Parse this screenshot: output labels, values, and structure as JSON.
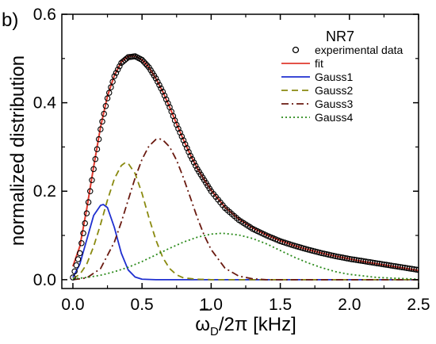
{
  "chart_data": {
    "type": "line",
    "panel_label": "b)",
    "legend_title": "NR7",
    "xlabel": "ω̄D/2π [kHz]",
    "xlabel_parts": {
      "symbol": "ω",
      "subscript": "D",
      "rest": "/2π [kHz]"
    },
    "ylabel": "normalized distribution",
    "xlim": [
      -0.08,
      2.5
    ],
    "ylim": [
      -0.02,
      0.6
    ],
    "xticks": [
      "0.0",
      "0.5",
      "1.0",
      "1.5",
      "2.0",
      "2.5"
    ],
    "yticks": [
      "0.0",
      "0.2",
      "0.4",
      "0.6"
    ],
    "legend_position": "top-right",
    "series": [
      {
        "name": "experimental data",
        "style": "open-circles",
        "color": "#000000",
        "x": [
          0.0,
          0.05,
          0.1,
          0.15,
          0.2,
          0.25,
          0.3,
          0.35,
          0.4,
          0.45,
          0.5,
          0.55,
          0.6,
          0.65,
          0.7,
          0.75,
          0.8,
          0.85,
          0.9,
          0.95,
          1.0,
          1.1,
          1.2,
          1.3,
          1.4,
          1.5,
          1.6,
          1.7,
          1.8,
          1.9,
          2.0,
          2.1,
          2.2,
          2.3,
          2.4,
          2.5
        ],
        "y": [
          0.005,
          0.06,
          0.15,
          0.25,
          0.34,
          0.41,
          0.46,
          0.49,
          0.503,
          0.505,
          0.497,
          0.48,
          0.455,
          0.425,
          0.39,
          0.35,
          0.315,
          0.28,
          0.25,
          0.225,
          0.2,
          0.162,
          0.135,
          0.115,
          0.1,
          0.087,
          0.077,
          0.068,
          0.06,
          0.053,
          0.047,
          0.042,
          0.037,
          0.032,
          0.027,
          0.022
        ]
      },
      {
        "name": "fit",
        "style": "solid",
        "color": "#e03a2e",
        "x": [
          0.0,
          0.05,
          0.1,
          0.15,
          0.2,
          0.25,
          0.3,
          0.35,
          0.4,
          0.45,
          0.5,
          0.55,
          0.6,
          0.65,
          0.7,
          0.75,
          0.8,
          0.85,
          0.9,
          0.95,
          1.0,
          1.1,
          1.2,
          1.3,
          1.4,
          1.5,
          1.6,
          1.7,
          1.8,
          1.9,
          2.0,
          2.1,
          2.2,
          2.3,
          2.4,
          2.5
        ],
        "y": [
          0.03,
          0.075,
          0.16,
          0.255,
          0.345,
          0.415,
          0.462,
          0.492,
          0.505,
          0.506,
          0.497,
          0.48,
          0.455,
          0.425,
          0.39,
          0.352,
          0.316,
          0.282,
          0.252,
          0.226,
          0.202,
          0.164,
          0.137,
          0.117,
          0.101,
          0.088,
          0.077,
          0.068,
          0.06,
          0.053,
          0.047,
          0.041,
          0.036,
          0.031,
          0.026,
          0.021
        ]
      },
      {
        "name": "Gauss1",
        "style": "solid",
        "color": "#1f2fd0",
        "x": [
          0.0,
          0.05,
          0.1,
          0.15,
          0.2,
          0.22,
          0.25,
          0.3,
          0.35,
          0.4,
          0.45,
          0.5,
          0.6,
          1.0,
          2.5
        ],
        "y": [
          0.005,
          0.035,
          0.09,
          0.145,
          0.168,
          0.17,
          0.163,
          0.118,
          0.06,
          0.022,
          0.006,
          0.001,
          0.0,
          0.0,
          0.0
        ]
      },
      {
        "name": "Gauss2",
        "style": "dashed",
        "color": "#8a8a10",
        "x": [
          0.0,
          0.05,
          0.1,
          0.15,
          0.2,
          0.25,
          0.3,
          0.35,
          0.38,
          0.4,
          0.45,
          0.5,
          0.55,
          0.6,
          0.65,
          0.7,
          0.75,
          0.8,
          0.9,
          1.0,
          2.5
        ],
        "y": [
          0.002,
          0.012,
          0.035,
          0.075,
          0.125,
          0.18,
          0.228,
          0.258,
          0.265,
          0.263,
          0.24,
          0.195,
          0.14,
          0.09,
          0.05,
          0.025,
          0.011,
          0.004,
          0.001,
          0.0,
          0.0
        ]
      },
      {
        "name": "Gauss3",
        "style": "dash-dot",
        "color": "#6a1a10",
        "x": [
          0.0,
          0.1,
          0.2,
          0.3,
          0.35,
          0.4,
          0.45,
          0.5,
          0.55,
          0.6,
          0.63,
          0.65,
          0.7,
          0.75,
          0.8,
          0.85,
          0.9,
          0.95,
          1.0,
          1.1,
          1.2,
          1.3,
          1.4,
          2.5
        ],
        "y": [
          0.0,
          0.004,
          0.025,
          0.085,
          0.13,
          0.18,
          0.23,
          0.272,
          0.302,
          0.317,
          0.318,
          0.316,
          0.3,
          0.27,
          0.23,
          0.185,
          0.14,
          0.1,
          0.068,
          0.026,
          0.008,
          0.002,
          0.0,
          0.0
        ]
      },
      {
        "name": "Gauss4",
        "style": "dotted",
        "color": "#2a8a1a",
        "x": [
          0.0,
          0.1,
          0.2,
          0.3,
          0.4,
          0.5,
          0.6,
          0.7,
          0.8,
          0.9,
          1.0,
          1.08,
          1.2,
          1.3,
          1.4,
          1.5,
          1.6,
          1.7,
          1.8,
          1.9,
          2.0,
          2.2,
          2.5
        ],
        "y": [
          0.002,
          0.005,
          0.01,
          0.018,
          0.028,
          0.041,
          0.056,
          0.071,
          0.085,
          0.096,
          0.103,
          0.105,
          0.101,
          0.093,
          0.081,
          0.066,
          0.051,
          0.038,
          0.027,
          0.018,
          0.012,
          0.005,
          0.001
        ]
      }
    ]
  }
}
